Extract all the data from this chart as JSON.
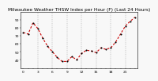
{
  "title": "Milwaukee Weather THSW Index per Hour (F) (Last 24 Hours)",
  "background_color": "#f8f8f8",
  "plot_bg_color": "#f8f8f8",
  "line_color": "#cc0000",
  "marker_color": "#000000",
  "grid_color": "#999999",
  "hours": [
    0,
    1,
    2,
    3,
    4,
    5,
    6,
    7,
    8,
    9,
    10,
    11,
    12,
    13,
    14,
    15,
    16,
    17,
    18,
    19,
    20,
    21,
    22,
    23
  ],
  "values": [
    74,
    72,
    86,
    79,
    67,
    57,
    50,
    43,
    38,
    38,
    44,
    40,
    48,
    52,
    51,
    49,
    55,
    53,
    55,
    62,
    72,
    82,
    88,
    93
  ],
  "ylim": [
    30,
    100
  ],
  "ytick_values": [
    40,
    50,
    60,
    70,
    80,
    90
  ],
  "ytick_labels": [
    "40",
    "50",
    "60",
    "70",
    "80",
    "90"
  ],
  "grid_hours": [
    3,
    6,
    9,
    12,
    15,
    18,
    21
  ],
  "xtick_hours": [
    0,
    1,
    2,
    3,
    4,
    5,
    6,
    7,
    8,
    9,
    10,
    11,
    12,
    13,
    14,
    15,
    16,
    17,
    18,
    19,
    20,
    21,
    22,
    23
  ],
  "xtick_labels": [
    "0",
    "",
    "",
    "3",
    "",
    "",
    "6",
    "",
    "",
    "9",
    "",
    "",
    "12",
    "",
    "",
    "15",
    "",
    "",
    "18",
    "",
    "",
    "21",
    "",
    ""
  ],
  "title_fontsize": 4.2,
  "tick_labelsize": 3.2,
  "line_width": 0.8,
  "marker_size": 1.2,
  "dashes": [
    2.5,
    1.8
  ]
}
